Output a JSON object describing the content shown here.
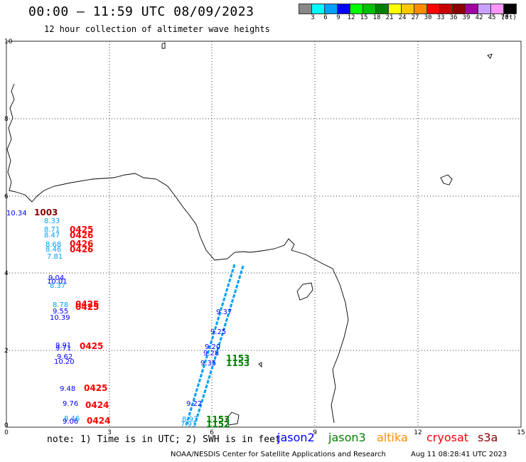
{
  "header": {
    "title": "00:00 – 11:59 UTC 08/09/2023",
    "subtitle": "12 hour collection of altimeter wave heights"
  },
  "color_scale": {
    "unit": "(ft)",
    "stops": [
      {
        "label": "3",
        "color": "#888888"
      },
      {
        "label": "6",
        "color": "#00ffff"
      },
      {
        "label": "9",
        "color": "#00a0ff"
      },
      {
        "label": "12",
        "color": "#0000ff"
      },
      {
        "label": "15",
        "color": "#00ff00"
      },
      {
        "label": "18",
        "color": "#00c000"
      },
      {
        "label": "21",
        "color": "#008000"
      },
      {
        "label": "24",
        "color": "#ffff00"
      },
      {
        "label": "27",
        "color": "#ffc800"
      },
      {
        "label": "30",
        "color": "#ff8c00"
      },
      {
        "label": "33",
        "color": "#ff0000"
      },
      {
        "label": "36",
        "color": "#c80000"
      },
      {
        "label": "39",
        "color": "#8b0000"
      },
      {
        "label": "42",
        "color": "#a000a0"
      },
      {
        "label": "45",
        "color": "#c8a0ff"
      },
      {
        "label": "70",
        "color": "#ff96ff"
      },
      {
        "label": "",
        "color": "#000000"
      }
    ]
  },
  "axes": {
    "x_ticks": [
      "0",
      "3",
      "6",
      "9",
      "12",
      "15"
    ],
    "y_ticks": [
      "0",
      "2",
      "4",
      "6",
      "8",
      "10"
    ]
  },
  "observations": [
    {
      "text": "10.34",
      "color": "#0000ff"
    },
    {
      "text": "1003",
      "color": "#8b0000"
    },
    {
      "text": "8.33",
      "color": "#00a0ff"
    },
    {
      "text": "8.71",
      "color": "#00a0ff"
    },
    {
      "text": "0425",
      "color": "#ff0000"
    },
    {
      "text": "8.47",
      "color": "#00a0ff"
    },
    {
      "text": "0426",
      "color": "#ff0000"
    },
    {
      "text": "8.68",
      "color": "#00a0ff"
    },
    {
      "text": "0426",
      "color": "#ff0000"
    },
    {
      "text": "8.46",
      "color": "#00a0ff"
    },
    {
      "text": "0426",
      "color": "#ff0000"
    },
    {
      "text": "7.81",
      "color": "#00a0ff"
    },
    {
      "text": "9.04",
      "color": "#0000ff"
    },
    {
      "text": "10.01",
      "color": "#0000ff"
    },
    {
      "text": "8.37",
      "color": "#00a0ff"
    },
    {
      "text": "8.78",
      "color": "#00a0ff"
    },
    {
      "text": "0425",
      "color": "#ff0000"
    },
    {
      "text": "9.55",
      "color": "#0000ff"
    },
    {
      "text": "0425",
      "color": "#ff0000"
    },
    {
      "text": "10.39",
      "color": "#0000ff"
    },
    {
      "text": "9.91",
      "color": "#0000ff"
    },
    {
      "text": "9.71",
      "color": "#0000ff"
    },
    {
      "text": "0425",
      "color": "#ff0000"
    },
    {
      "text": "9.62",
      "color": "#0000ff"
    },
    {
      "text": "10.20",
      "color": "#0000ff"
    },
    {
      "text": "9.48",
      "color": "#0000ff"
    },
    {
      "text": "0425",
      "color": "#ff0000"
    },
    {
      "text": "9.76",
      "color": "#0000ff"
    },
    {
      "text": "0424",
      "color": "#ff0000"
    },
    {
      "text": "8.46",
      "color": "#00a0ff"
    },
    {
      "text": "9.06",
      "color": "#0000ff"
    },
    {
      "text": "0424",
      "color": "#ff0000"
    },
    {
      "text": "9.37",
      "color": "#0000ff"
    },
    {
      "text": "9.25",
      "color": "#0000ff"
    },
    {
      "text": "9.20",
      "color": "#0000ff"
    },
    {
      "text": "9.28",
      "color": "#0000ff"
    },
    {
      "text": "9.35",
      "color": "#0000ff"
    },
    {
      "text": "1153",
      "color": "#008000"
    },
    {
      "text": "1153",
      "color": "#008000"
    },
    {
      "text": "9.22",
      "color": "#0000ff"
    },
    {
      "text": "8.93",
      "color": "#00a0ff"
    },
    {
      "text": "7.93",
      "color": "#00a0ff"
    },
    {
      "text": "1153",
      "color": "#008000"
    },
    {
      "text": "1152",
      "color": "#008000"
    }
  ],
  "footer": {
    "note": "note: 1) Time is in UTC; 2) SWH is in feet",
    "satellites": [
      {
        "label": "jason2",
        "color": "#0000ff"
      },
      {
        "label": "jason3",
        "color": "#008000"
      },
      {
        "label": "altika",
        "color": "#ff8c00"
      },
      {
        "label": "cryosat",
        "color": "#ff0000"
      },
      {
        "label": "s3a",
        "color": "#8b0000"
      }
    ],
    "credit": "NOAA/NESDIS Center for Satellite Applications and Research",
    "generated": "Aug 11 08:28:41 UTC 2023"
  }
}
